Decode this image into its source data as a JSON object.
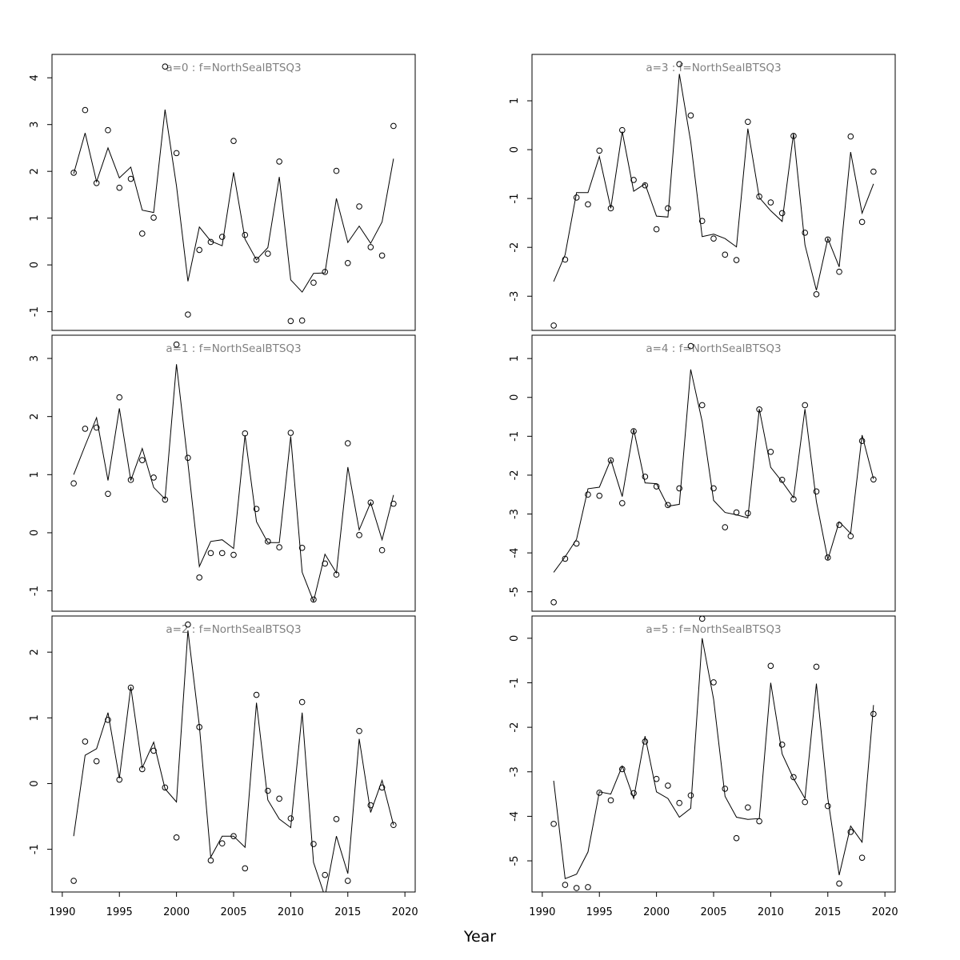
{
  "figure": {
    "xlabel": "Year",
    "line_color": "#000000",
    "title_color": "#808080"
  },
  "chart_data": [
    {
      "type": "scatter",
      "overlay": "line",
      "title": "a=0  :  f=NorthSealBTSQ3",
      "x": [
        1991,
        1992,
        1993,
        1994,
        1995,
        1996,
        1997,
        1998,
        1999,
        2000,
        2001,
        2002,
        2003,
        2004,
        2005,
        2006,
        2007,
        2008,
        2009,
        2010,
        2011,
        2012,
        2013,
        2014,
        2015,
        2016,
        2017,
        2018,
        2019
      ],
      "series": [
        {
          "kind": "observed-points",
          "values": [
            1.97,
            3.31,
            1.75,
            2.88,
            1.65,
            1.84,
            0.67,
            1.01,
            4.24,
            2.39,
            -1.06,
            0.32,
            0.49,
            0.6,
            2.65,
            0.64,
            0.11,
            0.24,
            2.21,
            -1.2,
            -1.19,
            -0.38,
            -0.15,
            2.01,
            0.04,
            1.25,
            0.38,
            0.2,
            2.97
          ]
        },
        {
          "kind": "fitted-line",
          "values": [
            1.95,
            2.82,
            1.78,
            2.5,
            1.86,
            2.09,
            1.17,
            1.12,
            3.32,
            1.69,
            -0.35,
            0.81,
            0.51,
            0.41,
            1.98,
            0.55,
            0.11,
            0.37,
            1.88,
            -0.32,
            -0.58,
            -0.18,
            -0.17,
            1.42,
            0.48,
            0.83,
            0.46,
            0.92,
            2.27
          ]
        }
      ],
      "xlim": [
        1989.1,
        2020.9
      ],
      "ylim": [
        -1.4,
        4.5
      ],
      "xticks": [
        1990,
        1995,
        2000,
        2005,
        2010,
        2015,
        2020
      ],
      "x_tick_labels_shown": false,
      "yticks": [
        -1,
        0,
        1,
        2,
        3,
        4
      ],
      "grid": false
    },
    {
      "type": "scatter",
      "overlay": "line",
      "title": "a=3  :  f=NorthSealBTSQ3",
      "x": [
        1991,
        1992,
        1993,
        1994,
        1995,
        1996,
        1997,
        1998,
        1999,
        2000,
        2001,
        2002,
        2003,
        2004,
        2005,
        2006,
        2007,
        2008,
        2009,
        2010,
        2011,
        2012,
        2013,
        2014,
        2015,
        2016,
        2017,
        2018,
        2019
      ],
      "series": [
        {
          "kind": "observed-points",
          "values": [
            -3.6,
            -2.25,
            -0.98,
            -1.12,
            -0.02,
            -1.2,
            0.4,
            -0.62,
            -0.73,
            -1.63,
            -1.2,
            1.75,
            0.7,
            -1.46,
            -1.82,
            -2.15,
            -2.26,
            0.57,
            -0.96,
            -1.08,
            -1.3,
            0.28,
            -1.7,
            -2.96,
            -1.84,
            -2.5,
            0.27,
            -1.48,
            -0.45
          ]
        },
        {
          "kind": "fitted-line",
          "values": [
            -2.7,
            -2.15,
            -0.88,
            -0.88,
            -0.14,
            -1.2,
            0.37,
            -0.85,
            -0.7,
            -1.36,
            -1.38,
            1.55,
            0.16,
            -1.78,
            -1.73,
            -1.82,
            -1.99,
            0.43,
            -0.98,
            -1.25,
            -1.47,
            0.33,
            -1.95,
            -2.88,
            -1.82,
            -2.4,
            -0.05,
            -1.3,
            -0.7
          ]
        }
      ],
      "xlim": [
        1989.1,
        2020.9
      ],
      "ylim": [
        -3.7,
        1.95
      ],
      "xticks": [
        1990,
        1995,
        2000,
        2005,
        2010,
        2015,
        2020
      ],
      "x_tick_labels_shown": false,
      "yticks": [
        -3,
        -2,
        -1,
        0,
        1
      ],
      "grid": false
    },
    {
      "type": "scatter",
      "overlay": "line",
      "title": "a=1  :  f=NorthSealBTSQ3",
      "x": [
        1991,
        1992,
        1993,
        1994,
        1995,
        1996,
        1997,
        1998,
        1999,
        2000,
        2001,
        2002,
        2003,
        2004,
        2005,
        2006,
        2007,
        2008,
        2009,
        2010,
        2011,
        2012,
        2013,
        2014,
        2015,
        2016,
        2017,
        2018,
        2019
      ],
      "series": [
        {
          "kind": "observed-points",
          "values": [
            0.85,
            1.79,
            1.81,
            0.67,
            2.33,
            0.91,
            1.25,
            0.95,
            0.57,
            3.24,
            1.29,
            -0.77,
            -0.35,
            -0.35,
            -0.38,
            1.71,
            0.41,
            -0.15,
            -0.25,
            1.72,
            -0.26,
            -1.15,
            -0.53,
            -0.72,
            1.54,
            -0.04,
            0.52,
            -0.3,
            0.5
          ]
        },
        {
          "kind": "fitted-line",
          "values": [
            1.0,
            1.5,
            1.98,
            0.9,
            2.14,
            0.9,
            1.45,
            0.78,
            0.58,
            2.9,
            1.2,
            -0.58,
            -0.15,
            -0.12,
            -0.27,
            1.68,
            0.19,
            -0.17,
            -0.17,
            1.66,
            -0.68,
            -1.18,
            -0.37,
            -0.69,
            1.13,
            0.05,
            0.52,
            -0.12,
            0.65
          ]
        }
      ],
      "xlim": [
        1989.1,
        2020.9
      ],
      "ylim": [
        -1.35,
        3.4
      ],
      "xticks": [
        1990,
        1995,
        2000,
        2005,
        2010,
        2015,
        2020
      ],
      "x_tick_labels_shown": false,
      "yticks": [
        -1,
        0,
        1,
        2,
        3
      ],
      "grid": false
    },
    {
      "type": "scatter",
      "overlay": "line",
      "title": "a=4  :  f=NorthSealBTSQ3",
      "x": [
        1991,
        1992,
        1993,
        1994,
        1995,
        1996,
        1997,
        1998,
        1999,
        2000,
        2001,
        2002,
        2003,
        2004,
        2005,
        2006,
        2007,
        2008,
        2009,
        2010,
        2011,
        2012,
        2013,
        2014,
        2015,
        2016,
        2017,
        2018,
        2019
      ],
      "series": [
        {
          "kind": "observed-points",
          "values": [
            -5.27,
            -4.15,
            -3.76,
            -2.5,
            -2.53,
            -1.62,
            -2.72,
            -0.87,
            -2.04,
            -2.29,
            -2.77,
            -2.34,
            1.32,
            -0.2,
            -2.34,
            -3.34,
            -2.96,
            -2.98,
            -0.31,
            -1.4,
            -2.12,
            -2.62,
            -0.2,
            -2.42,
            -4.12,
            -3.28,
            -3.57,
            -1.12,
            -2.11
          ]
        },
        {
          "kind": "fitted-line",
          "values": [
            -4.5,
            -4.1,
            -3.65,
            -2.35,
            -2.31,
            -1.6,
            -2.55,
            -0.82,
            -2.2,
            -2.22,
            -2.8,
            -2.75,
            0.72,
            -0.62,
            -2.65,
            -2.96,
            -3.02,
            -3.1,
            -0.3,
            -1.8,
            -2.17,
            -2.58,
            -0.3,
            -2.68,
            -4.17,
            -3.2,
            -3.5,
            -0.97,
            -2.1
          ]
        }
      ],
      "xlim": [
        1989.1,
        2020.9
      ],
      "ylim": [
        -5.5,
        1.6
      ],
      "xticks": [
        1990,
        1995,
        2000,
        2005,
        2010,
        2015,
        2020
      ],
      "x_tick_labels_shown": false,
      "yticks": [
        -5,
        -4,
        -3,
        -2,
        -1,
        0,
        1
      ],
      "grid": false
    },
    {
      "type": "scatter",
      "overlay": "line",
      "title": "a=2  :  f=NorthSealBTSQ3",
      "x": [
        1991,
        1992,
        1993,
        1994,
        1995,
        1996,
        1997,
        1998,
        1999,
        2000,
        2001,
        2002,
        2003,
        2004,
        2005,
        2006,
        2007,
        2008,
        2009,
        2010,
        2011,
        2012,
        2013,
        2014,
        2015,
        2016,
        2017,
        2018,
        2019
      ],
      "series": [
        {
          "kind": "observed-points",
          "values": [
            -1.48,
            0.64,
            0.34,
            0.97,
            0.06,
            1.46,
            0.22,
            0.5,
            -0.06,
            -0.82,
            2.42,
            0.86,
            -1.17,
            -0.91,
            -0.8,
            -1.29,
            1.35,
            -0.11,
            -0.23,
            -0.53,
            1.24,
            -0.92,
            -1.39,
            -0.54,
            -1.48,
            0.8,
            -0.33,
            -0.06,
            -0.63
          ]
        },
        {
          "kind": "fitted-line",
          "values": [
            -0.8,
            0.43,
            0.53,
            1.08,
            0.08,
            1.47,
            0.24,
            0.63,
            -0.08,
            -0.28,
            2.33,
            0.88,
            -1.12,
            -0.8,
            -0.8,
            -0.97,
            1.23,
            -0.25,
            -0.54,
            -0.67,
            1.08,
            -1.2,
            -1.72,
            -0.8,
            -1.37,
            0.68,
            -0.44,
            0.05,
            -0.63
          ]
        }
      ],
      "xlim": [
        1989.1,
        2020.9
      ],
      "ylim": [
        -1.65,
        2.55
      ],
      "xticks": [
        1990,
        1995,
        2000,
        2005,
        2010,
        2015,
        2020
      ],
      "x_tick_labels_shown": true,
      "yticks": [
        -1,
        0,
        1,
        2
      ],
      "grid": false
    },
    {
      "type": "scatter",
      "overlay": "line",
      "title": "a=5  :  f=NorthSealBTSQ3",
      "x": [
        1991,
        1992,
        1993,
        1994,
        1995,
        1996,
        1997,
        1998,
        1999,
        2000,
        2001,
        2002,
        2003,
        2004,
        2005,
        2006,
        2007,
        2008,
        2009,
        2010,
        2011,
        2012,
        2013,
        2014,
        2015,
        2016,
        2017,
        2018,
        2019
      ],
      "series": [
        {
          "kind": "observed-points",
          "values": [
            -4.17,
            -5.54,
            -5.61,
            -5.59,
            -3.47,
            -3.64,
            -2.94,
            -3.48,
            -2.32,
            -3.16,
            -3.31,
            -3.7,
            -3.53,
            0.44,
            -0.99,
            -3.38,
            -4.49,
            -3.8,
            -4.11,
            -0.62,
            -2.39,
            -3.12,
            -3.68,
            -0.64,
            -3.77,
            -5.51,
            -4.35,
            -4.93,
            -1.7
          ]
        },
        {
          "kind": "fitted-line",
          "values": [
            -3.2,
            -5.4,
            -5.3,
            -4.8,
            -3.45,
            -3.5,
            -2.87,
            -3.6,
            -2.2,
            -3.45,
            -3.6,
            -4.02,
            -3.82,
            0.0,
            -1.37,
            -3.55,
            -4.02,
            -4.07,
            -4.05,
            -1.0,
            -2.6,
            -3.15,
            -3.6,
            -1.02,
            -3.6,
            -5.32,
            -4.22,
            -4.58,
            -1.5
          ]
        }
      ],
      "xlim": [
        1989.1,
        2020.9
      ],
      "ylim": [
        -5.7,
        0.5
      ],
      "xticks": [
        1990,
        1995,
        2000,
        2005,
        2010,
        2015,
        2020
      ],
      "x_tick_labels_shown": true,
      "yticks": [
        -5,
        -4,
        -3,
        -2,
        -1,
        0
      ],
      "grid": false
    }
  ]
}
